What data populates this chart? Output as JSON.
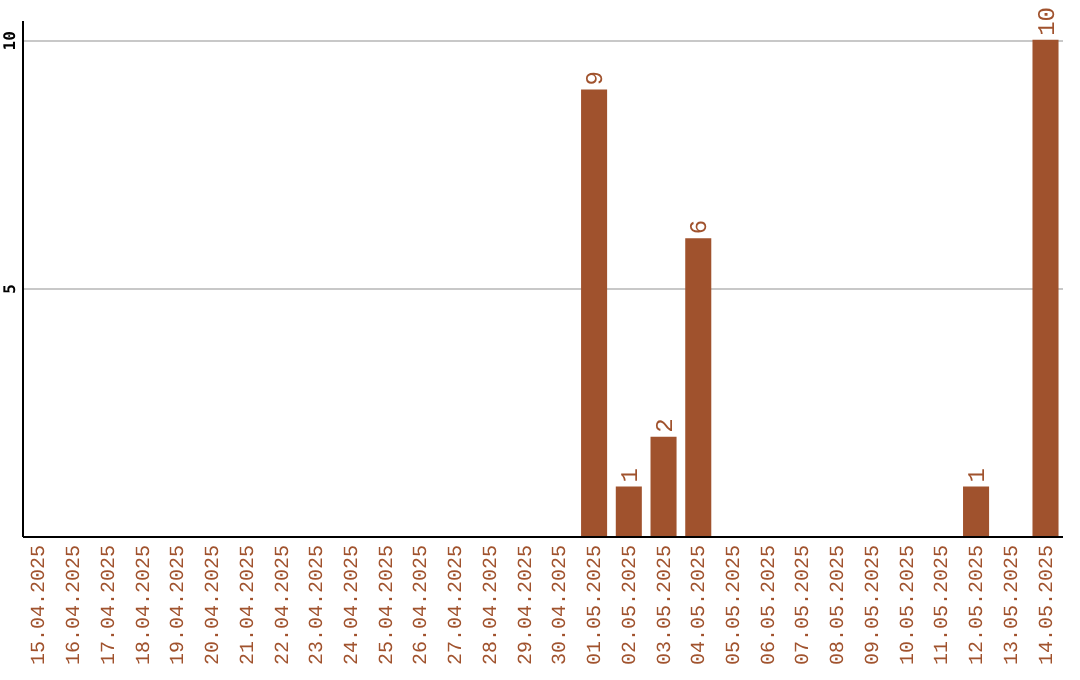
{
  "chart_data": {
    "type": "bar",
    "categories": [
      "15.04.2025",
      "16.04.2025",
      "17.04.2025",
      "18.04.2025",
      "19.04.2025",
      "20.04.2025",
      "21.04.2025",
      "22.04.2025",
      "23.04.2025",
      "24.04.2025",
      "25.04.2025",
      "26.04.2025",
      "27.04.2025",
      "28.04.2025",
      "29.04.2025",
      "30.04.2025",
      "01.05.2025",
      "02.05.2025",
      "03.05.2025",
      "04.05.2025",
      "05.05.2025",
      "06.05.2025",
      "07.05.2025",
      "08.05.2025",
      "09.05.2025",
      "10.05.2025",
      "11.05.2025",
      "12.05.2025",
      "13.05.2025",
      "14.05.2025"
    ],
    "values": [
      0,
      0,
      0,
      0,
      0,
      0,
      0,
      0,
      0,
      0,
      0,
      0,
      0,
      0,
      0,
      0,
      9,
      1,
      2,
      6,
      0,
      0,
      0,
      0,
      0,
      0,
      0,
      1,
      0,
      10
    ],
    "value_labels": [
      null,
      null,
      null,
      null,
      null,
      null,
      null,
      null,
      null,
      null,
      null,
      null,
      null,
      null,
      null,
      null,
      "9",
      "1",
      "2",
      "6",
      null,
      null,
      null,
      null,
      null,
      null,
      null,
      "1",
      null,
      "10"
    ],
    "color": "#a0522d",
    "ylim": [
      0,
      10.4
    ],
    "yticks": [
      5,
      10
    ],
    "grid": "y"
  }
}
